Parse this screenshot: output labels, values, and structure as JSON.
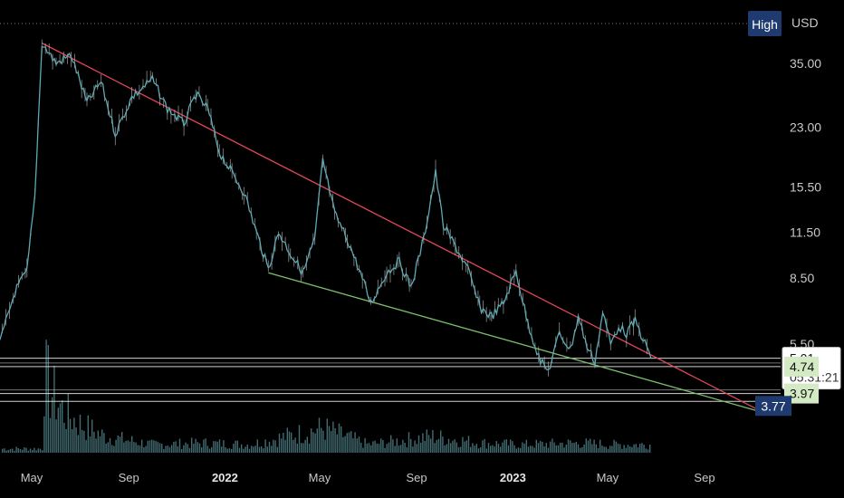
{
  "chart_data": {
    "type": "line",
    "title": "",
    "currency": "USD",
    "scale_mode": "High",
    "y_scale": "log",
    "ylim": [
      3.5,
      50
    ],
    "x_ticks": [
      "May",
      "Sep",
      "2022",
      "May",
      "Sep",
      "2023",
      "May",
      "Sep"
    ],
    "x_tick_dates": [
      "2021-05",
      "2021-09",
      "2022-01",
      "2022-05",
      "2022-09",
      "2023-01",
      "2023-05",
      "2023-09"
    ],
    "y_ticks": [
      "35.00",
      "23.00",
      "15.50",
      "11.50",
      "8.50",
      "5.50"
    ],
    "y_tick_values": [
      35,
      23,
      15.5,
      11.5,
      8.5,
      5.5
    ],
    "price_series": [
      [
        "2021-01-10",
        6.6
      ],
      [
        "2021-02-01",
        5.6
      ],
      [
        "2021-03-01",
        6.3
      ],
      [
        "2021-03-20",
        5.4
      ],
      [
        "2021-04-10",
        7.8
      ],
      [
        "2021-04-25",
        8.9
      ],
      [
        "2021-05-05",
        14.5
      ],
      [
        "2021-05-14",
        40.0
      ],
      [
        "2021-06-01",
        35.0
      ],
      [
        "2021-06-20",
        37.0
      ],
      [
        "2021-07-10",
        27.0
      ],
      [
        "2021-07-28",
        31.0
      ],
      [
        "2021-08-15",
        22.0
      ],
      [
        "2021-09-05",
        28.0
      ],
      [
        "2021-10-01",
        31.5
      ],
      [
        "2021-10-20",
        26.0
      ],
      [
        "2021-11-10",
        23.5
      ],
      [
        "2021-11-25",
        28.5
      ],
      [
        "2021-12-10",
        26.0
      ],
      [
        "2021-12-25",
        19.5
      ],
      [
        "2022-01-10",
        17.0
      ],
      [
        "2022-01-25",
        15.0
      ],
      [
        "2022-02-10",
        11.5
      ],
      [
        "2022-02-25",
        9.0
      ],
      [
        "2022-03-10",
        11.5
      ],
      [
        "2022-03-25",
        10.0
      ],
      [
        "2022-04-10",
        8.8
      ],
      [
        "2022-04-25",
        11.0
      ],
      [
        "2022-05-05",
        18.5
      ],
      [
        "2022-05-20",
        13.0
      ],
      [
        "2022-06-05",
        11.0
      ],
      [
        "2022-06-20",
        9.0
      ],
      [
        "2022-07-05",
        7.2
      ],
      [
        "2022-07-25",
        8.8
      ],
      [
        "2022-08-10",
        9.5
      ],
      [
        "2022-08-25",
        8.0
      ],
      [
        "2022-09-10",
        11.0
      ],
      [
        "2022-09-25",
        17.0
      ],
      [
        "2022-10-05",
        12.0
      ],
      [
        "2022-10-20",
        10.5
      ],
      [
        "2022-11-05",
        9.0
      ],
      [
        "2022-11-20",
        7.0
      ],
      [
        "2022-12-05",
        6.6
      ],
      [
        "2022-12-20",
        7.2
      ],
      [
        "2023-01-05",
        8.9
      ],
      [
        "2023-01-20",
        6.3
      ],
      [
        "2023-02-05",
        4.9
      ],
      [
        "2023-02-15",
        4.6
      ],
      [
        "2023-03-01",
        5.9
      ],
      [
        "2023-03-15",
        5.3
      ],
      [
        "2023-03-25",
        6.6
      ],
      [
        "2023-04-05",
        5.4
      ],
      [
        "2023-04-15",
        4.9
      ],
      [
        "2023-04-25",
        6.8
      ],
      [
        "2023-05-05",
        5.5
      ],
      [
        "2023-05-15",
        6.2
      ],
      [
        "2023-05-25",
        5.9
      ],
      [
        "2023-06-05",
        6.4
      ],
      [
        "2023-06-15",
        5.7
      ],
      [
        "2023-06-25",
        5.01
      ]
    ],
    "volume_relative": [
      [
        "2021-05-15",
        1.0
      ],
      [
        "2021-05-25",
        0.75
      ],
      [
        "2021-06-10",
        0.5
      ],
      [
        "2021-07-01",
        0.35
      ],
      [
        "2021-08-01",
        0.2
      ],
      [
        "2021-09-01",
        0.15
      ],
      [
        "2021-10-01",
        0.1
      ],
      [
        "2021-12-01",
        0.12
      ],
      [
        "2022-02-01",
        0.1
      ],
      [
        "2022-05-05",
        0.3
      ],
      [
        "2022-07-01",
        0.1
      ],
      [
        "2022-09-20",
        0.2
      ],
      [
        "2022-11-20",
        0.12
      ],
      [
        "2023-01-10",
        0.1
      ],
      [
        "2023-03-25",
        0.12
      ],
      [
        "2023-05-10",
        0.1
      ]
    ],
    "trendlines": [
      {
        "name": "resistance",
        "color": "#e0475a",
        "start": [
          "2021-05-14",
          40.0
        ],
        "end": [
          "2023-11-15",
          3.5
        ]
      },
      {
        "name": "support",
        "color": "#7bbf6a",
        "start": [
          "2022-02-25",
          8.8
        ],
        "end": [
          "2023-11-15",
          3.5
        ]
      }
    ],
    "horizontal_levels": [
      {
        "value": 5.01,
        "label": "5.01",
        "sublabel": "05:31:21",
        "style": "last-price"
      },
      {
        "value": 4.74,
        "label": "4.74",
        "style": "green"
      },
      {
        "value": 3.97,
        "label": "3.97",
        "style": "green"
      },
      {
        "value": 3.77,
        "label": "3.77",
        "style": "blue"
      }
    ],
    "colors": {
      "background": "#000000",
      "price_line": "#5fa9b2",
      "price_wick": "#c9c9c9",
      "volume": "#4f7f86",
      "level_line": "#e8e8e8",
      "label_green": "#d4eac4",
      "label_blue": "#1e3a6e",
      "high_badge": "#1e3a6e"
    }
  }
}
